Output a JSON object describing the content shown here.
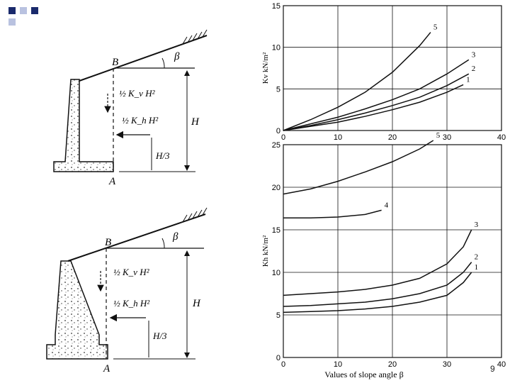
{
  "colors": {
    "square_dark": "#1a2a6c",
    "square_light": "#b9c2e0",
    "ink": "#111111"
  },
  "page_number": "9",
  "wall_top": {
    "label_B": "B",
    "label_A": "A",
    "label_beta": "β",
    "label_H_right": "H",
    "force_v": "½ K_v H²",
    "force_h": "½ K_h H²",
    "lever_arm": "H/3"
  },
  "wall_bottom": {
    "label_B": "B",
    "label_A": "A",
    "label_beta": "β",
    "label_H_right": "H",
    "force_v": "½ K_v H²",
    "force_h": "½ K_h H²",
    "lever_arm": "H/3"
  },
  "chart_data": [
    {
      "type": "line",
      "ylabel": "Kv kN/m²",
      "xlim": [
        0,
        40
      ],
      "ylim": [
        0,
        15
      ],
      "xticks": [
        "0",
        "10",
        "20",
        "30",
        "40"
      ],
      "yticks": [
        "0",
        "5",
        "10",
        "15"
      ],
      "grid": true,
      "series": [
        {
          "name": "5",
          "x": [
            0,
            5,
            10,
            15,
            20,
            25,
            27
          ],
          "y": [
            0,
            1.3,
            2.8,
            4.6,
            7,
            10.2,
            11.8
          ]
        },
        {
          "name": "3",
          "x": [
            0,
            5,
            10,
            15,
            20,
            25,
            30,
            34
          ],
          "y": [
            0,
            0.8,
            1.6,
            2.6,
            3.7,
            5,
            6.8,
            8.5
          ]
        },
        {
          "name": "2",
          "x": [
            0,
            5,
            10,
            15,
            20,
            25,
            30,
            34
          ],
          "y": [
            0,
            0.6,
            1.3,
            2.1,
            3,
            4,
            5.4,
            6.8
          ]
        },
        {
          "name": "1",
          "x": [
            0,
            5,
            10,
            15,
            20,
            25,
            30,
            33
          ],
          "y": [
            0,
            0.5,
            1,
            1.7,
            2.5,
            3.4,
            4.6,
            5.5
          ]
        }
      ]
    },
    {
      "type": "line",
      "xlabel": "Values of slope angle β",
      "ylabel": "Kh kN/m²",
      "xlim": [
        0,
        40
      ],
      "ylim": [
        0,
        25
      ],
      "xticks": [
        "0",
        "10",
        "20",
        "30",
        "40"
      ],
      "yticks": [
        "0",
        "5",
        "10",
        "15",
        "20",
        "25"
      ],
      "grid": true,
      "series": [
        {
          "name": "5",
          "x": [
            0,
            5,
            10,
            15,
            20,
            25,
            27.5
          ],
          "y": [
            19.2,
            19.8,
            20.7,
            21.8,
            23,
            24.5,
            25.5
          ]
        },
        {
          "name": "4",
          "x": [
            0,
            5,
            10,
            15,
            18
          ],
          "y": [
            16.4,
            16.4,
            16.5,
            16.8,
            17.3
          ]
        },
        {
          "name": "3",
          "x": [
            0,
            5,
            10,
            15,
            20,
            25,
            30,
            33,
            34.5
          ],
          "y": [
            7.3,
            7.5,
            7.7,
            8,
            8.5,
            9.3,
            11,
            13,
            15
          ]
        },
        {
          "name": "2",
          "x": [
            0,
            5,
            10,
            15,
            20,
            25,
            30,
            33,
            34.5
          ],
          "y": [
            6,
            6.1,
            6.3,
            6.5,
            6.9,
            7.5,
            8.5,
            10,
            11.2
          ]
        },
        {
          "name": "1",
          "x": [
            0,
            5,
            10,
            15,
            20,
            25,
            30,
            33,
            34.5
          ],
          "y": [
            5.3,
            5.4,
            5.5,
            5.7,
            6,
            6.5,
            7.3,
            8.8,
            10
          ]
        }
      ]
    }
  ]
}
